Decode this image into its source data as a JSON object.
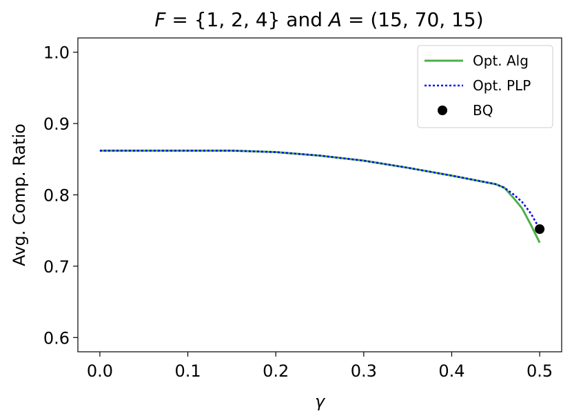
{
  "chart_data": {
    "type": "line",
    "title_parts": {
      "lhs1": "F",
      "eq1": " = ",
      "set1": "{1, 2, 4}",
      "conj": " and ",
      "lhs2": "A",
      "eq2": " = ",
      "set2": "(15, 70, 15)"
    },
    "xlabel": "γ",
    "ylabel": "Avg. Comp. Ratio",
    "xlim": [
      -0.025,
      0.525
    ],
    "ylim": [
      0.58,
      1.02
    ],
    "xticks": [
      0.0,
      0.1,
      0.2,
      0.3,
      0.4,
      0.5
    ],
    "xtick_labels": [
      "0.0",
      "0.1",
      "0.2",
      "0.3",
      "0.4",
      "0.5"
    ],
    "yticks": [
      0.6,
      0.7,
      0.8,
      0.9,
      1.0
    ],
    "ytick_labels": [
      "0.6",
      "0.7",
      "0.8",
      "0.9",
      "1.0"
    ],
    "grid": false,
    "legend_position": "top-right",
    "series": [
      {
        "name": "Opt. Alg",
        "style": "solid",
        "color": "#4daf4a",
        "x": [
          0.0,
          0.05,
          0.1,
          0.15,
          0.2,
          0.25,
          0.3,
          0.35,
          0.4,
          0.45,
          0.46,
          0.47,
          0.48,
          0.49,
          0.5
        ],
        "y": [
          0.862,
          0.862,
          0.862,
          0.862,
          0.86,
          0.855,
          0.848,
          0.838,
          0.827,
          0.815,
          0.81,
          0.796,
          0.781,
          0.758,
          0.733
        ]
      },
      {
        "name": "Opt. PLP",
        "style": "dotted",
        "color": "#0000ff",
        "x": [
          0.0,
          0.05,
          0.1,
          0.15,
          0.2,
          0.25,
          0.3,
          0.35,
          0.4,
          0.45,
          0.46,
          0.47,
          0.48,
          0.49,
          0.5
        ],
        "y": [
          0.862,
          0.862,
          0.862,
          0.862,
          0.86,
          0.855,
          0.848,
          0.838,
          0.827,
          0.815,
          0.81,
          0.801,
          0.79,
          0.774,
          0.752
        ]
      },
      {
        "name": "BQ",
        "style": "marker",
        "color": "#000000",
        "x": [
          0.5
        ],
        "y": [
          0.752
        ]
      }
    ]
  }
}
